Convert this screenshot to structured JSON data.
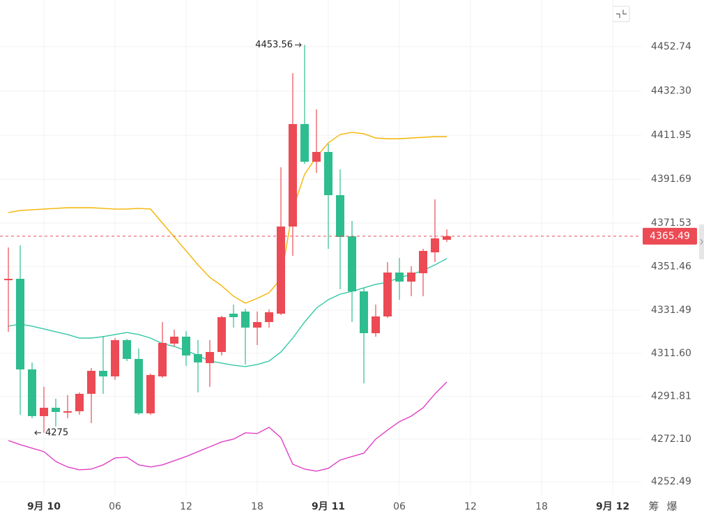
{
  "chart_data": {
    "type": "candlestick",
    "x": [
      -3,
      -2,
      -1,
      0,
      1,
      2,
      3,
      4,
      5,
      6,
      7,
      8,
      9,
      10,
      11,
      12,
      13,
      14,
      15,
      16,
      17,
      18,
      19,
      20,
      21,
      22,
      23,
      24,
      25,
      26,
      27,
      28,
      29,
      30,
      31,
      32,
      33,
      34
    ],
    "open": [
      4345.24,
      4345.88,
      4304.16,
      4282.66,
      4286.51,
      4284.27,
      4284.91,
      4292.93,
      4303.52,
      4300.95,
      4317.64,
      4308.98,
      4283.95,
      4300.95,
      4316.04,
      4319.24,
      4311.22,
      4307.05,
      4312.19,
      4329.83,
      4330.8,
      4323.42,
      4325.98,
      4329.83,
      4369.95,
      4417.12,
      4399.79,
      4404.28,
      4384.39,
      4365.45,
      4340.1,
      4320.85,
      4328.55,
      4348.77,
      4344.6,
      4348.45,
      4358.07,
      4363.85
    ],
    "high": [
      4360.32,
      4361.28,
      4307.37,
      4296.14,
      4290.69,
      4292.29,
      4293.57,
      4304.8,
      4319.57,
      4318.6,
      4318.28,
      4313.79,
      4302.24,
      4325.98,
      4322.45,
      4321.81,
      4317.64,
      4317.64,
      4328.87,
      4334.01,
      4332.08,
      4330.8,
      4331.76,
      4397.22,
      4440.55,
      4453.56,
      4423.86,
      4408.13,
      4396.26,
      4372.51,
      4341.71,
      4334.01,
      4353.58,
      4355.51,
      4351.66,
      4359.68,
      4382.46,
      4368.66
    ],
    "low": [
      4321.49,
      4283.3,
      4281.7,
      4275.0,
      4277.85,
      4281.7,
      4283.3,
      4279.45,
      4292.93,
      4299.35,
      4308.01,
      4283.3,
      4283.3,
      4300.31,
      4314.75,
      4305.77,
      4293.57,
      4296.14,
      4310.58,
      4323.42,
      4306.41,
      4315.39,
      4323.42,
      4329.19,
      4356.47,
      4398.83,
      4394.66,
      4359.68,
      4341.07,
      4325.98,
      4297.74,
      4319.24,
      4327.91,
      4336.25,
      4337.86,
      4337.86,
      4353.58,
      4362.89
    ],
    "close": [
      4345.88,
      4304.16,
      4282.66,
      4286.51,
      4284.59,
      4284.91,
      4292.93,
      4303.52,
      4300.95,
      4317.64,
      4308.98,
      4283.95,
      4301.6,
      4316.36,
      4319.24,
      4310.58,
      4307.37,
      4312.19,
      4328.23,
      4328.23,
      4323.42,
      4325.98,
      4330.48,
      4369.95,
      4417.12,
      4399.79,
      4404.28,
      4384.39,
      4365.13,
      4340.1,
      4320.85,
      4328.55,
      4348.77,
      4344.6,
      4348.77,
      4358.72,
      4364.49,
      4365.49
    ],
    "up_color": "#ec4a54",
    "down_color": "#2ebd8e",
    "bands": [
      {
        "color": "#f4b400",
        "values": [
          4376.37,
          4377.33,
          4377.65,
          4377.97,
          4378.29,
          4378.61,
          4378.61,
          4378.61,
          4378.29,
          4377.97,
          4377.97,
          4378.29,
          4377.97,
          4371.55,
          4365.13,
          4358.72,
          4352.3,
          4346.52,
          4342.67,
          4337.86,
          4334.65,
          4336.89,
          4339.46,
          4345.88,
          4377.97,
          4394.01,
          4402.04,
          4408.46,
          4412.31,
          4413.27,
          4412.63,
          4410.7,
          4410.38,
          4410.38,
          4410.7,
          4411.02,
          4411.34,
          4411.34
        ]
      },
      {
        "color": "#34c7a6",
        "values": [
          4324.06,
          4325.02,
          4324.06,
          4322.78,
          4321.49,
          4320.21,
          4318.6,
          4318.6,
          4319.25,
          4320.21,
          4321.17,
          4320.21,
          4318.6,
          4316.04,
          4314.75,
          4312.83,
          4310.58,
          4308.01,
          4307.05,
          4306.09,
          4305.45,
          4306.41,
          4308.01,
          4312.19,
          4318.6,
          4325.98,
          4332.4,
          4336.25,
          4338.82,
          4340.1,
          4341.71,
          4343.31,
          4344.28,
          4346.52,
          4347.81,
          4349.73,
          4352.3,
          4355.19
        ]
      },
      {
        "color": "#df3fc6",
        "values": [
          4271.43,
          4269.51,
          4267.9,
          4266.3,
          4261.8,
          4259.24,
          4257.95,
          4258.27,
          4260.2,
          4263.41,
          4263.73,
          4260.2,
          4259.24,
          4260.2,
          4262.13,
          4264.05,
          4266.3,
          4268.54,
          4270.79,
          4272.07,
          4274.96,
          4274.64,
          4277.53,
          4272.71,
          4260.52,
          4258.27,
          4257.31,
          4258.6,
          4262.45,
          4264.05,
          4265.65,
          4272.07,
          4276.24,
          4280.1,
          4282.66,
          4286.51,
          4292.93,
          4298.39
        ]
      }
    ],
    "xlim": [
      -3.706,
      50.41
    ],
    "xticks": [
      {
        "value": 0,
        "label": "9月 10"
      },
      {
        "value": 6,
        "label": "06"
      },
      12,
      18,
      {
        "value": 24,
        "label": "9月 11"
      },
      {
        "value": 30,
        "label": "06"
      },
      {
        "value": 36,
        "label": "12"
      },
      {
        "value": 42,
        "label": "18"
      },
      {
        "value": 48,
        "label": "9月 12"
      }
    ],
    "ylim": [
      4246.39,
      4474.24
    ],
    "yticks": [
      4452.74,
      {
        "value": 4432.3,
        "label": "4432.30"
      },
      4411.95,
      4391.69,
      4371.53,
      4351.46,
      4331.49,
      {
        "value": 4311.6,
        "label": "4311.60"
      },
      4291.81,
      {
        "value": 4272.1,
        "label": "4272.10"
      },
      4252.49
    ],
    "grid": true
  },
  "toolbar": [
    "筹",
    "爆"
  ]
}
